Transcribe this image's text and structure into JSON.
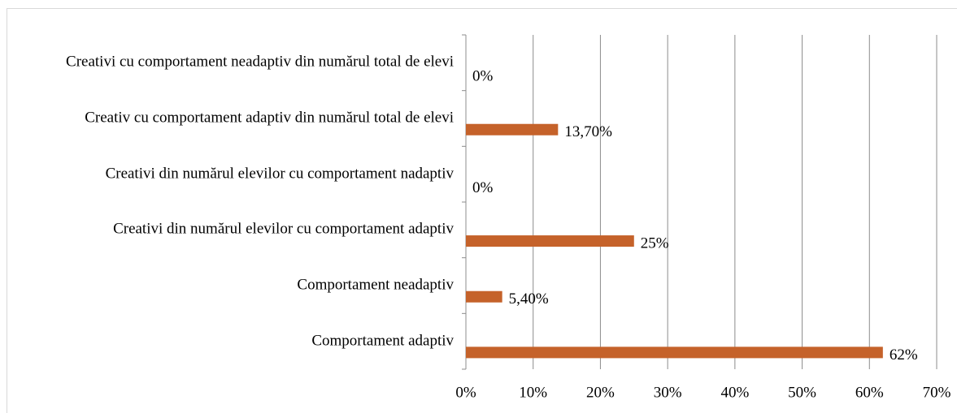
{
  "chart_data": {
    "type": "hbar",
    "categories": [
      "Creativi cu comportament neadaptiv din numărul total de elevi",
      "Creativ cu comportament adaptiv din numărul total de elevi",
      "Creativi din numărul elevilor cu comportament nadaptiv",
      "Creativi din numărul elevilor cu comportament adaptiv",
      "Comportament neadaptiv",
      "Comportament adaptiv"
    ],
    "values": [
      0,
      13.7,
      0,
      25,
      5.4,
      62
    ],
    "value_labels": [
      "0%",
      "13,70%",
      "0%",
      "25%",
      "5,40%",
      "62%"
    ],
    "color": "#c5622a",
    "xlim": [
      0,
      70
    ],
    "xticks": [
      {
        "value": 0,
        "label": "0%"
      },
      {
        "value": 10,
        "label": "10%"
      },
      {
        "value": 20,
        "label": "20%"
      },
      {
        "value": 30,
        "label": "30%"
      },
      {
        "value": 40,
        "label": "40%"
      },
      {
        "value": 50,
        "label": "50%"
      },
      {
        "value": 60,
        "label": "60%"
      },
      {
        "value": 70,
        "label": "70%"
      }
    ],
    "grid": true
  }
}
